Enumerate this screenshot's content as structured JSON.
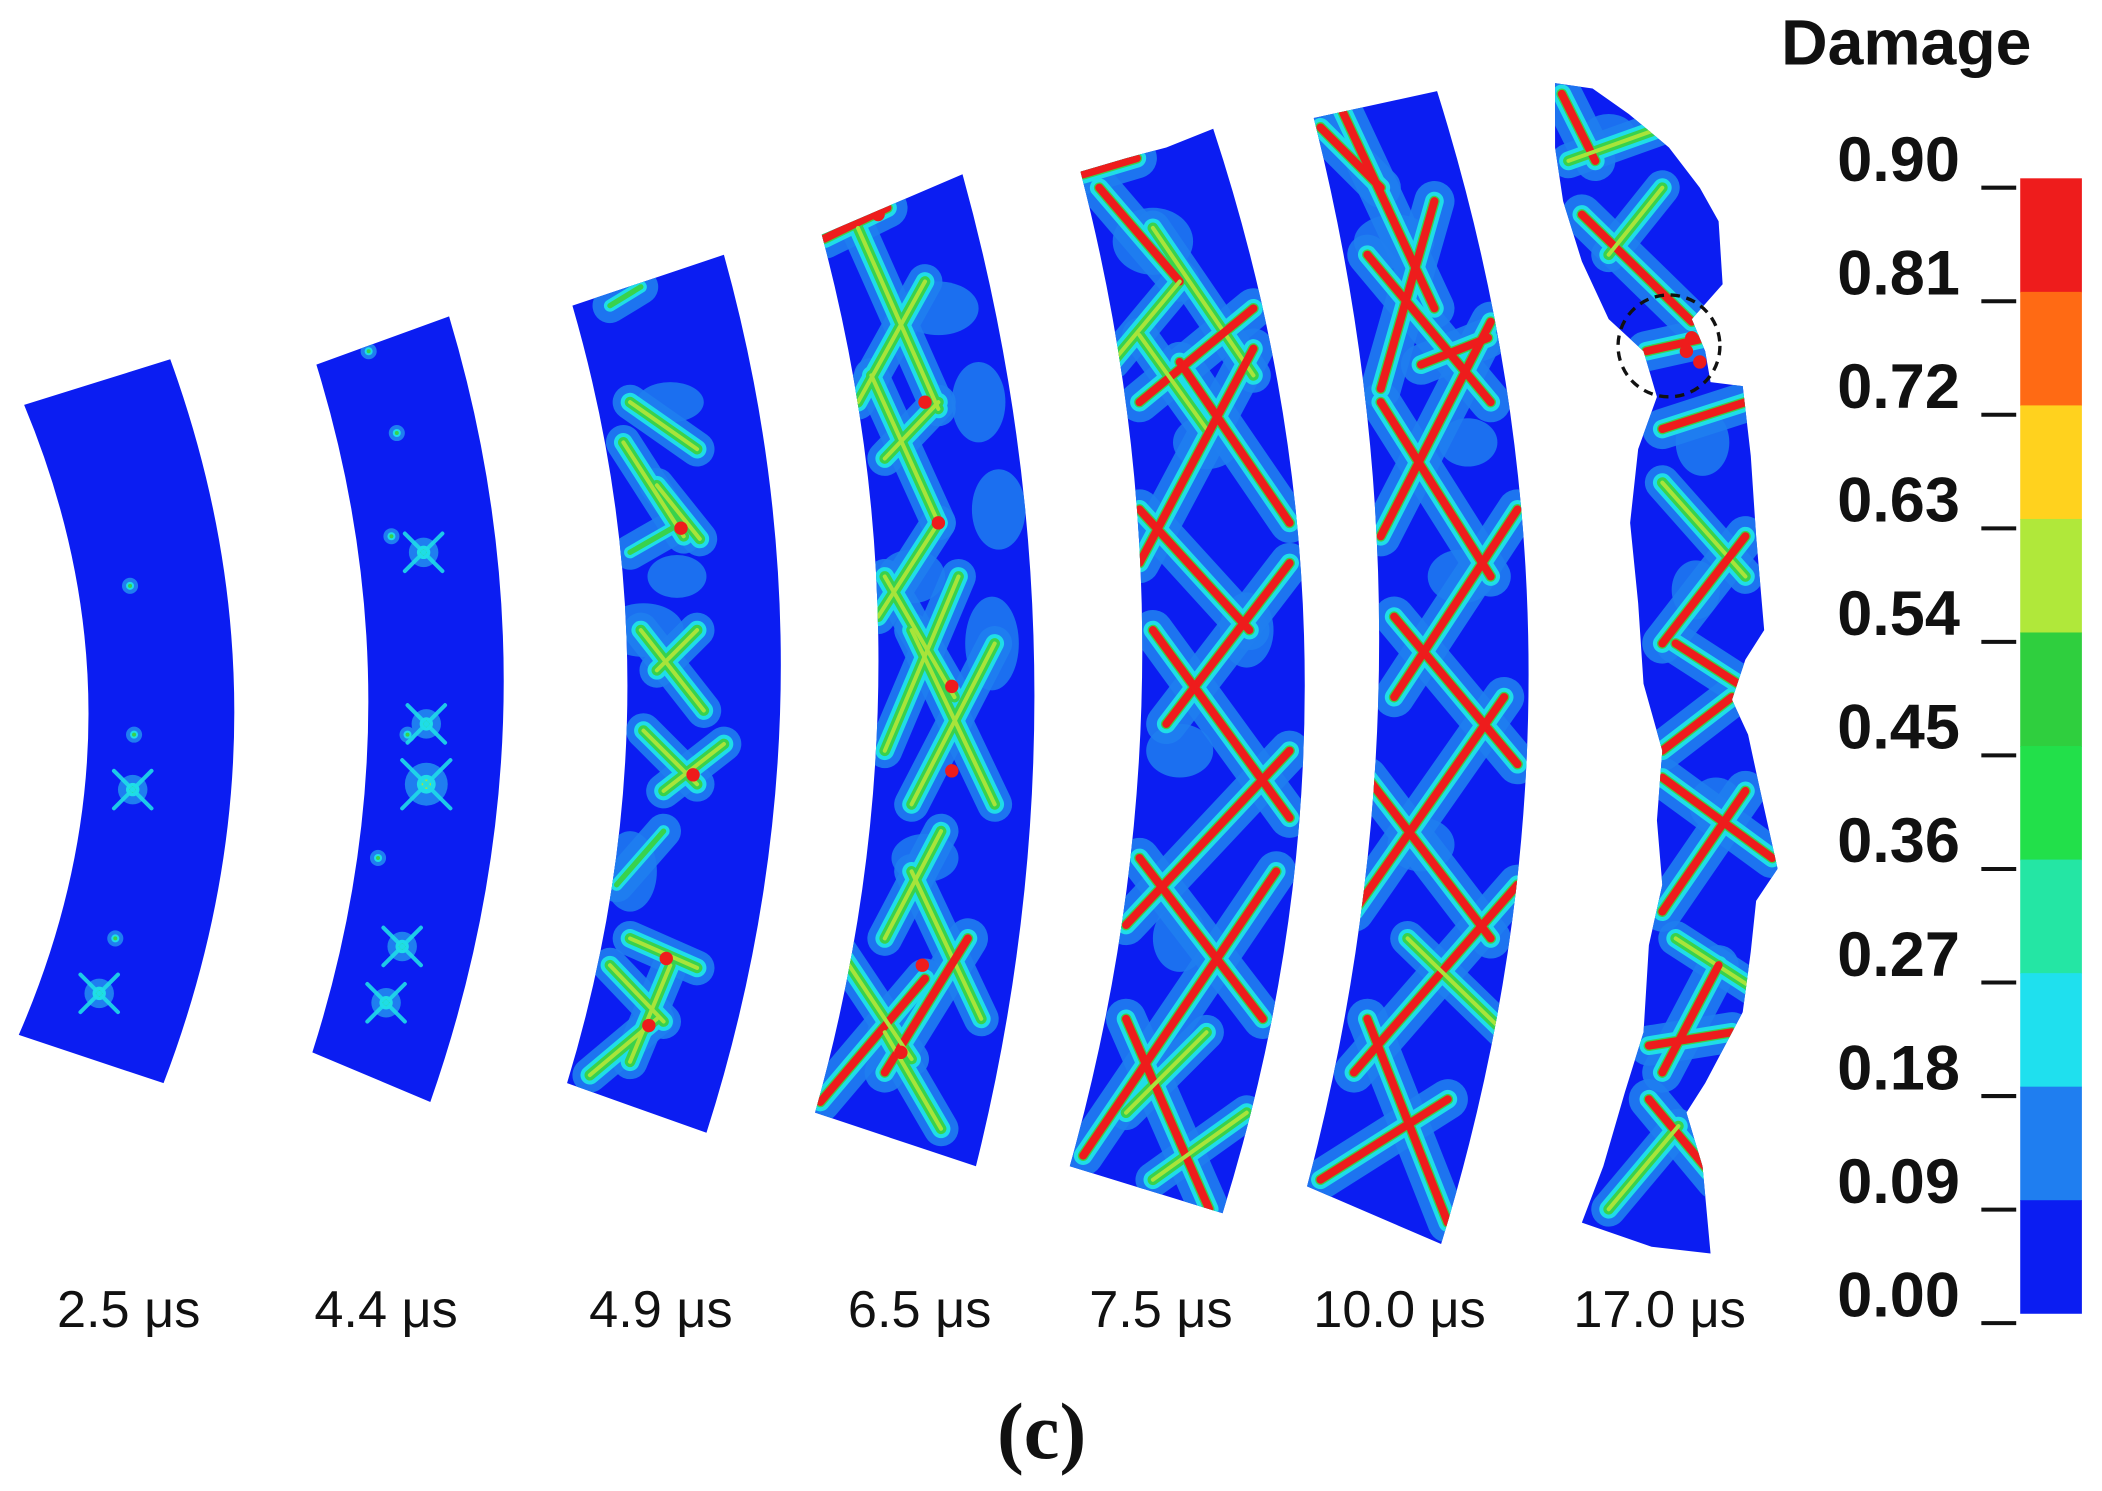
{
  "figure": {
    "panel_label": "(c)",
    "shell_color": "#0b1df2",
    "snapshots": [
      {
        "time": "2.5 μs"
      },
      {
        "time": "4.4 μs"
      },
      {
        "time": "4.9 μs"
      },
      {
        "time": "6.5 μs"
      },
      {
        "time": "7.5 μs"
      },
      {
        "time": "10.0 μs"
      },
      {
        "time": "17.0 μs"
      }
    ]
  },
  "legend": {
    "title": "Damage",
    "ticks": [
      "0.90",
      "0.81",
      "0.72",
      "0.63",
      "0.54",
      "0.45",
      "0.36",
      "0.27",
      "0.18",
      "0.09",
      "0.00"
    ],
    "colors": [
      "#ee1c1c",
      "#ff6a14",
      "#ffd21e",
      "#b0e83a",
      "#2fcf3e",
      "#22e04a",
      "#24e6a4",
      "#1fe0ee",
      "#1f7ef0",
      "#0b1df2"
    ]
  }
}
